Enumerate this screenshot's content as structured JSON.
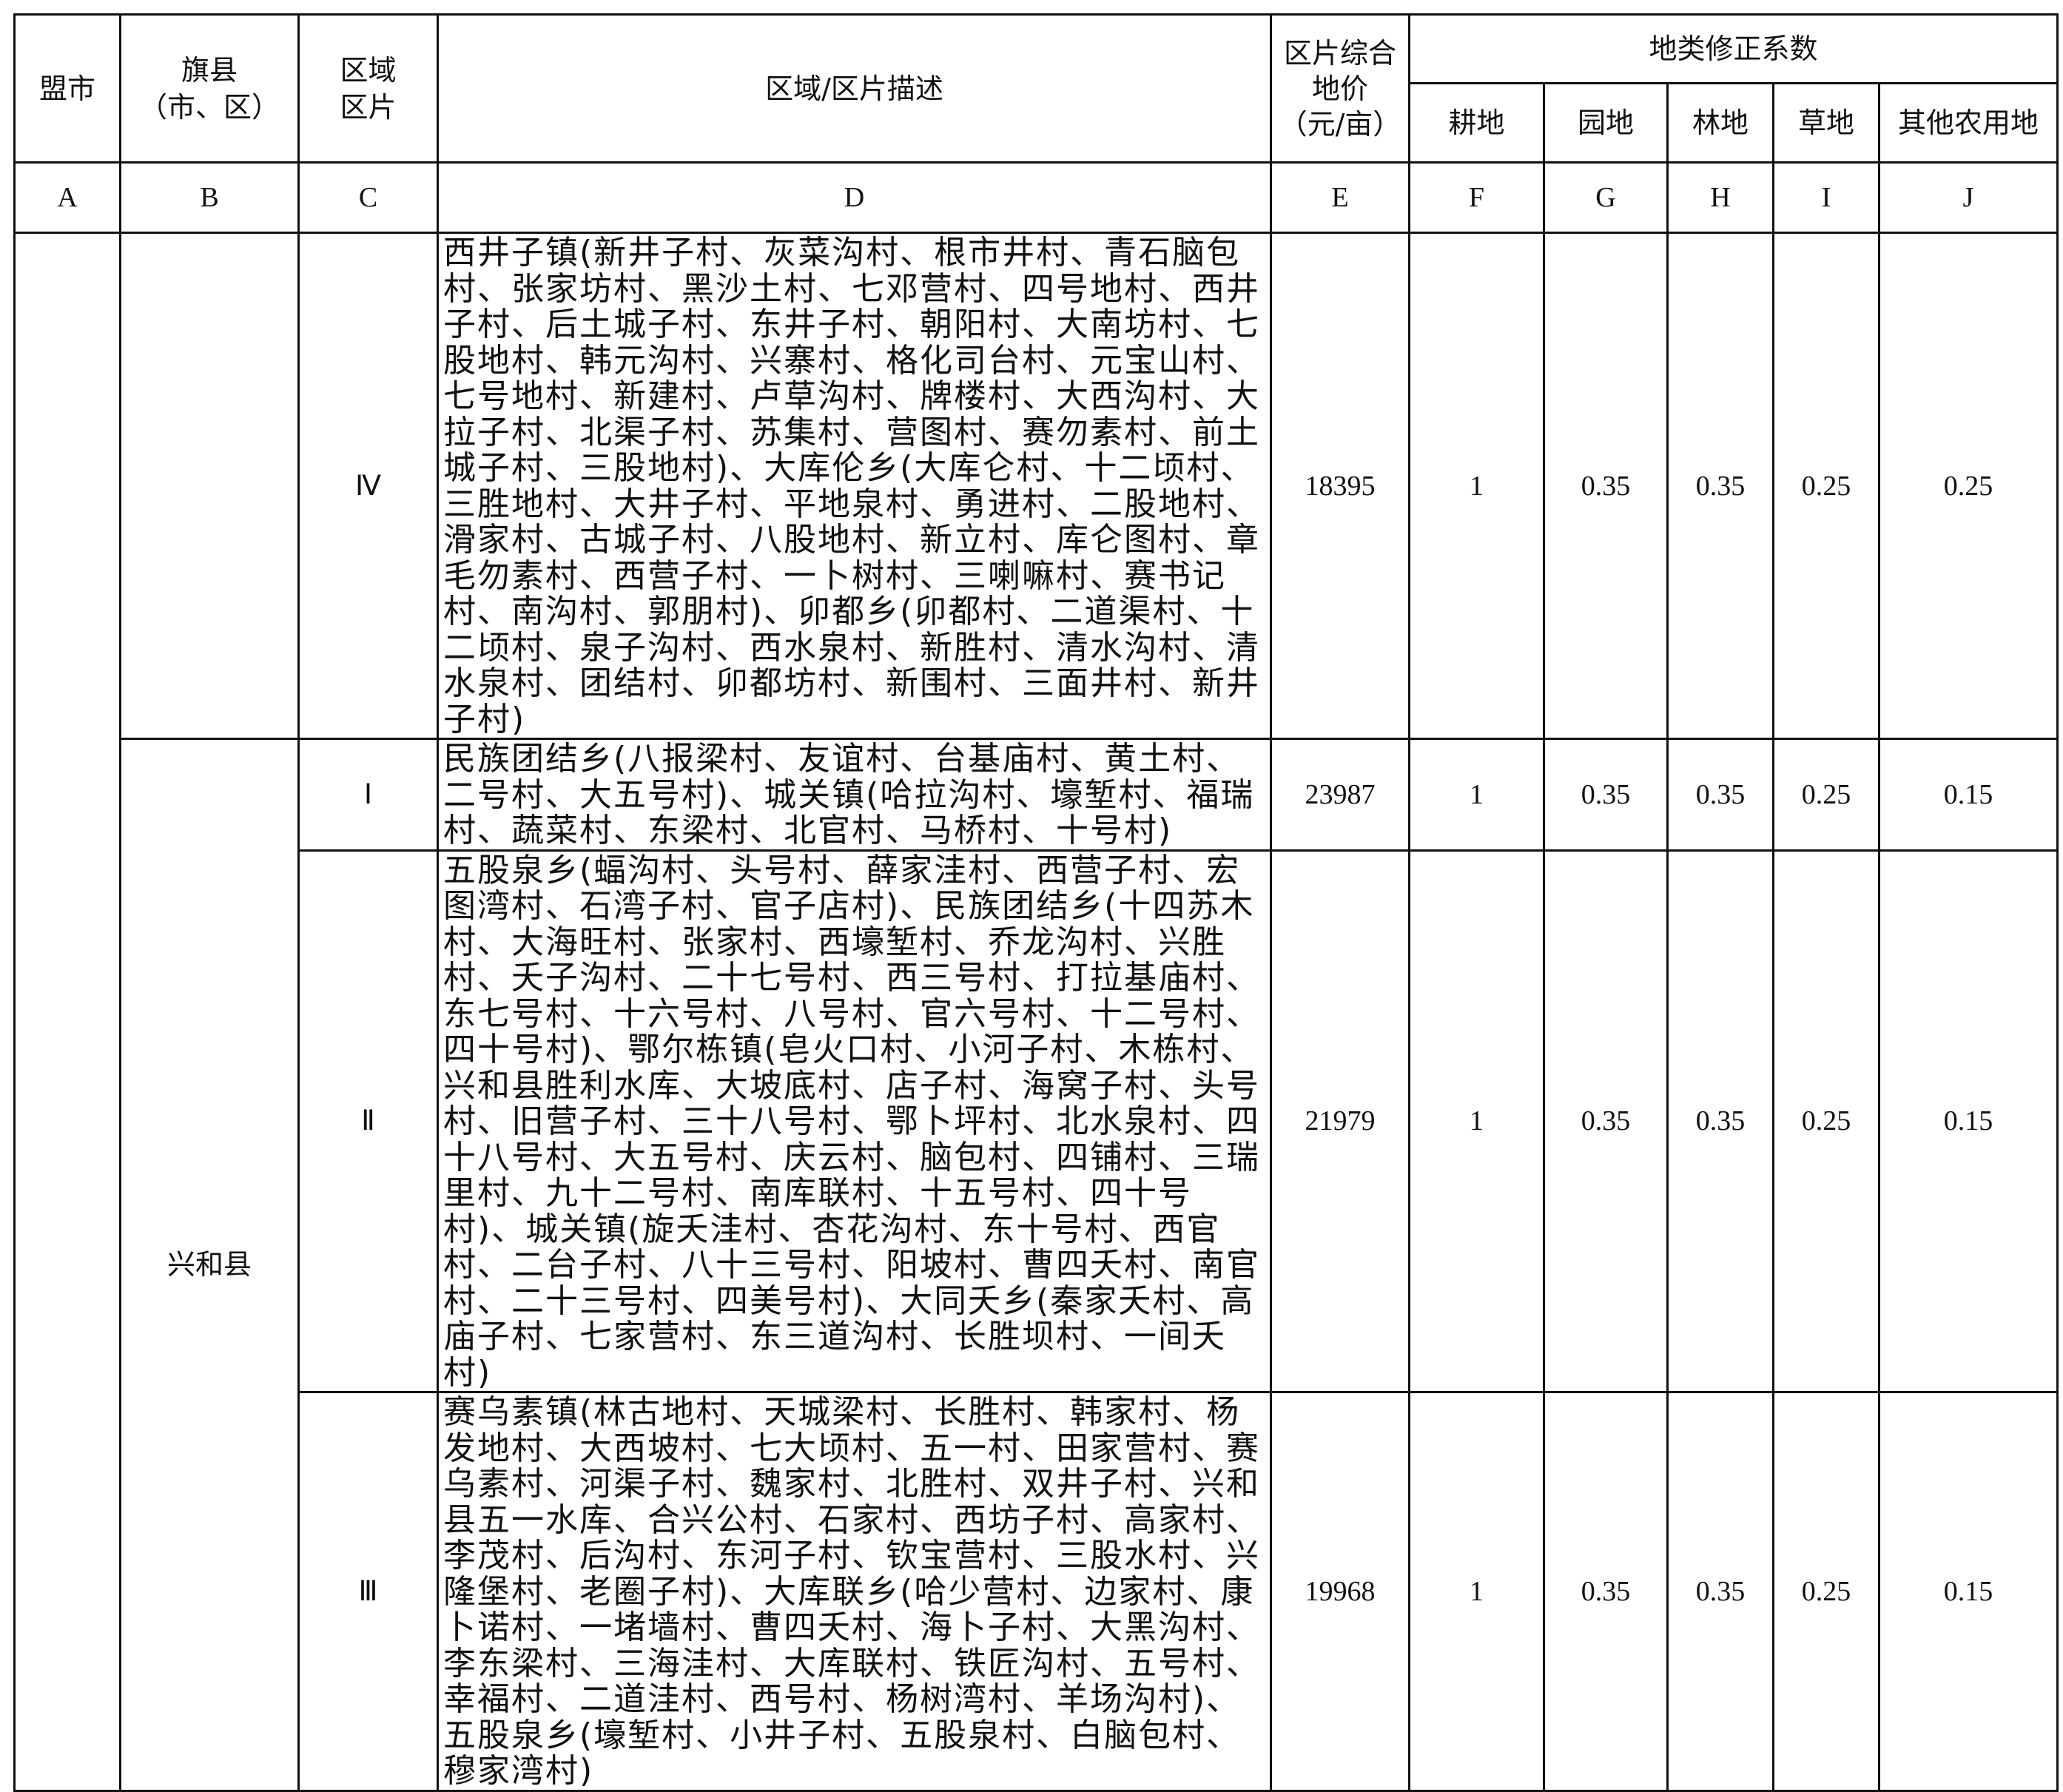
{
  "header": {
    "league_city": "盟市",
    "county": "旗县\n（市、区）",
    "zone": "区域\n区片",
    "description": "区域/区片描述",
    "price": "区片综合\n地价\n（元/亩）",
    "coef_group": "地类修正系数",
    "coef_cols": [
      "耕地",
      "园地",
      "林地",
      "草地",
      "其他农用地"
    ]
  },
  "letters": [
    "A",
    "B",
    "C",
    "D",
    "E",
    "F",
    "G",
    "H",
    "I",
    "J"
  ],
  "county_name": "兴和县",
  "rows": [
    {
      "zone": "Ⅳ",
      "description": "西井子镇(新井子村、灰菜沟村、根市井村、青石脑包村、张家坊村、黑沙土村、七邓营村、四号地村、西井子村、后土城子村、东井子村、朝阳村、大南坊村、七股地村、韩元沟村、兴寨村、格化司台村、元宝山村、七号地村、新建村、卢草沟村、牌楼村、大西沟村、大拉子村、北渠子村、苏集村、营图村、赛勿素村、前土城子村、三股地村)、大库伦乡(大库仑村、十二顷村、三胜地村、大井子村、平地泉村、勇进村、二股地村、滑家村、古城子村、八股地村、新立村、库仑图村、章毛勿素村、西营子村、一卜树村、三喇嘛村、赛书记村、南沟村、郭朋村)、卯都乡(卯都村、二道渠村、十二顷村、泉子沟村、西水泉村、新胜村、清水沟村、清水泉村、团结村、卯都坊村、新围村、三面井村、新井子村)",
      "price": "18395",
      "coefs": [
        "1",
        "0.35",
        "0.35",
        "0.25",
        "0.25"
      ]
    },
    {
      "zone": "Ⅰ",
      "description": "民族团结乡(八报梁村、友谊村、台基庙村、黄土村、二号村、大五号村)、城关镇(哈拉沟村、壕堑村、福瑞村、蔬菜村、东梁村、北官村、马桥村、十号村)",
      "price": "23987",
      "coefs": [
        "1",
        "0.35",
        "0.35",
        "0.25",
        "0.15"
      ]
    },
    {
      "zone": "Ⅱ",
      "description": "五股泉乡(蝠沟村、头号村、薛家洼村、西营子村、宏图湾村、石湾子村、官子店村)、民族团结乡(十四苏木村、大海旺村、张家村、西壕堑村、乔龙沟村、兴胜村、夭子沟村、二十七号村、西三号村、打拉基庙村、东七号村、十六号村、八号村、官六号村、十二号村、四十号村)、鄂尔栋镇(皂火口村、小河子村、木栋村、兴和县胜利水库、大坡底村、店子村、海窝子村、头号村、旧营子村、三十八号村、鄂卜坪村、北水泉村、四十八号村、大五号村、庆云村、脑包村、四铺村、三瑞里村、九十二号村、南库联村、十五号村、四十号村)、城关镇(旋夭洼村、杏花沟村、东十号村、西官村、二台子村、八十三号村、阳坡村、曹四夭村、南官村、二十三号村、四美号村)、大同夭乡(秦家夭村、高庙子村、七家营村、东三道沟村、长胜坝村、一间夭村)",
      "price": "21979",
      "coefs": [
        "1",
        "0.35",
        "0.35",
        "0.25",
        "0.15"
      ]
    },
    {
      "zone": "Ⅲ",
      "description": "赛乌素镇(林古地村、天城梁村、长胜村、韩家村、杨发地村、大西坡村、七大顷村、五一村、田家营村、赛乌素村、河渠子村、魏家村、北胜村、双井子村、兴和县五一水库、合兴公村、石家村、西坊子村、高家村、李茂村、后沟村、东河子村、钦宝营村、三股水村、兴隆堡村、老圈子村)、大库联乡(哈少营村、边家村、康卜诺村、一堵墙村、曹四夭村、海卜子村、大黑沟村、李东梁村、三海洼村、大库联村、铁匠沟村、五号村、幸福村、二道洼村、西号村、杨树湾村、羊场沟村)、五股泉乡(壕堑村、小井子村、五股泉村、白脑包村、穆家湾村)",
      "price": "19968",
      "coefs": [
        "1",
        "0.35",
        "0.35",
        "0.25",
        "0.15"
      ]
    }
  ]
}
